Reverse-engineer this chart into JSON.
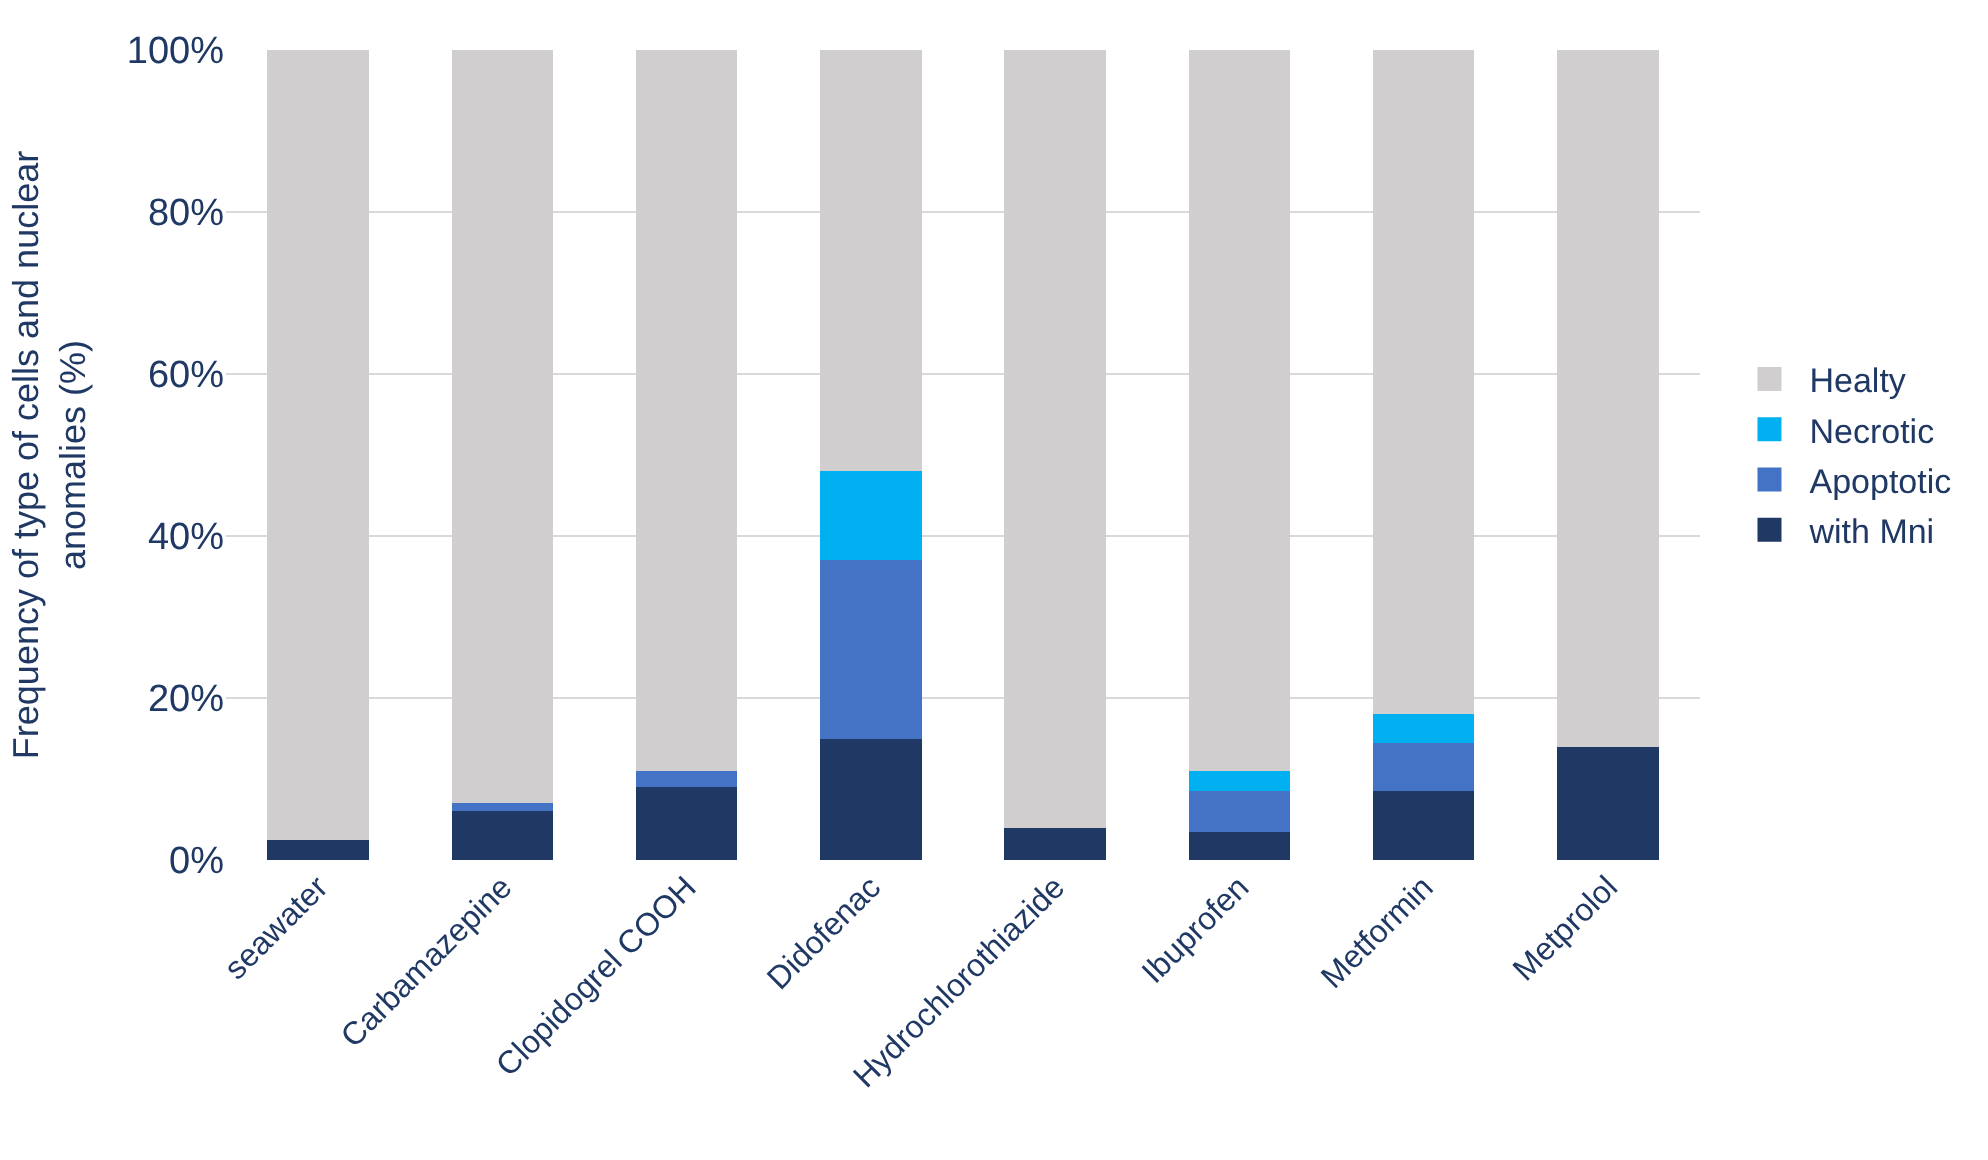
{
  "chart_data": {
    "type": "bar",
    "stacked": true,
    "ylabel": "Frequency of type of cells and nuclear\nanomalies (%)",
    "categories": [
      "seawater",
      "Carbamazepine",
      "Clopidogrel COOH",
      "Didofenac",
      "Hydrochlorothiazide",
      "Ibuprofen",
      "Metformin",
      "Metprolol"
    ],
    "series": [
      {
        "name": "with Mni",
        "color": "#1f3864",
        "values": [
          2.5,
          6,
          9,
          15,
          4,
          3.5,
          8.5,
          14
        ]
      },
      {
        "name": "Apoptotic",
        "color": "#4472c4",
        "values": [
          0,
          1,
          2,
          22,
          0,
          5,
          6,
          0
        ]
      },
      {
        "name": "Necrotic",
        "color": "#00b0f0",
        "values": [
          0,
          0,
          0,
          11,
          0,
          2.5,
          3.5,
          0
        ]
      },
      {
        "name": "Healty",
        "color": "#d0cece",
        "values": [
          97.5,
          93,
          89,
          52,
          96,
          89,
          82,
          86
        ]
      }
    ],
    "ylim": [
      0,
      100
    ],
    "yticks": [
      {
        "value": 0,
        "label": "0%"
      },
      {
        "value": 20,
        "label": "20%"
      },
      {
        "value": 40,
        "label": "40%"
      },
      {
        "value": 60,
        "label": "60%"
      },
      {
        "value": 80,
        "label": "80%"
      },
      {
        "value": 100,
        "label": "100%"
      }
    ],
    "grid": "y",
    "legend": "right"
  }
}
